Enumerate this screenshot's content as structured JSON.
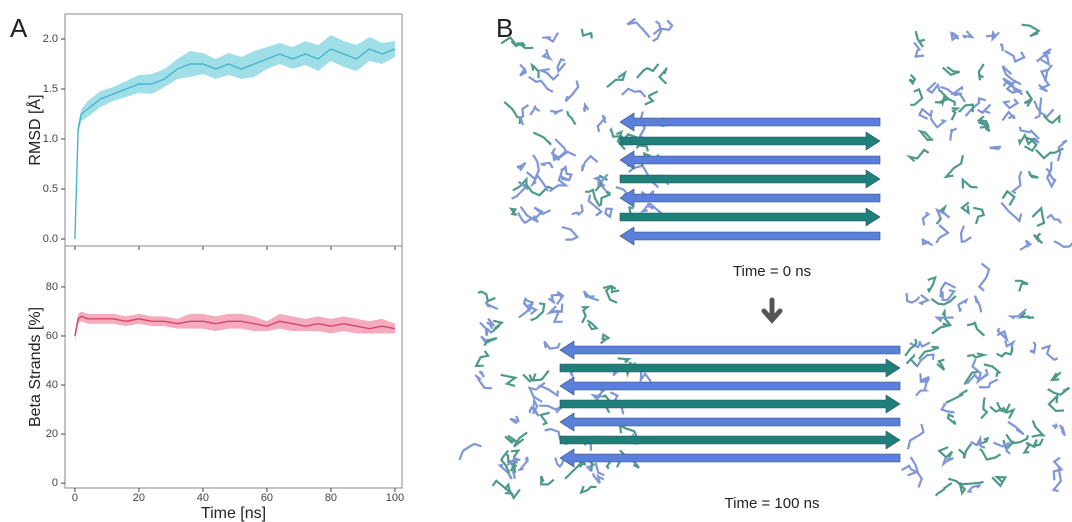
{
  "panel_a": {
    "label": "A"
  },
  "panel_b": {
    "label": "B",
    "captions": [
      "Time = 0 ns",
      "Time = 100 ns"
    ]
  },
  "chart_data": [
    {
      "type": "line",
      "ylabel": "RMSD [Å]",
      "xlim": [
        -3.1,
        102.2
      ],
      "ylim": [
        -0.07,
        2.25
      ],
      "xticks": [
        0,
        20,
        40,
        60,
        80,
        100
      ],
      "yticks": [
        {
          "value": 0,
          "label": "0.0"
        },
        0.5,
        {
          "value": 1,
          "label": "1.0"
        },
        1.5,
        {
          "value": 2,
          "label": "2.0"
        }
      ],
      "x": [
        0,
        1,
        2,
        4,
        8,
        12,
        16,
        20,
        24,
        28,
        32,
        36,
        40,
        44,
        48,
        52,
        56,
        60,
        64,
        68,
        72,
        76,
        80,
        84,
        88,
        92,
        96,
        100
      ],
      "series": [
        {
          "color": "#45b6cc",
          "band_color": "#62c9d9",
          "values": [
            0,
            1.1,
            1.25,
            1.3,
            1.4,
            1.45,
            1.5,
            1.55,
            1.55,
            1.6,
            1.7,
            1.75,
            1.75,
            1.7,
            1.75,
            1.7,
            1.75,
            1.8,
            1.85,
            1.8,
            1.85,
            1.8,
            1.9,
            1.85,
            1.8,
            1.9,
            1.85,
            1.9
          ],
          "lower": [
            0,
            1.05,
            1.18,
            1.22,
            1.32,
            1.38,
            1.42,
            1.46,
            1.45,
            1.52,
            1.6,
            1.62,
            1.65,
            1.6,
            1.64,
            1.6,
            1.62,
            1.7,
            1.75,
            1.7,
            1.74,
            1.68,
            1.78,
            1.72,
            1.68,
            1.78,
            1.75,
            1.82
          ],
          "upper": [
            0,
            1.15,
            1.3,
            1.38,
            1.48,
            1.52,
            1.58,
            1.64,
            1.65,
            1.7,
            1.8,
            1.88,
            1.86,
            1.8,
            1.86,
            1.82,
            1.88,
            1.92,
            1.96,
            1.92,
            1.98,
            1.94,
            2.04,
            1.98,
            1.94,
            2.02,
            1.96,
            1.98
          ]
        }
      ]
    },
    {
      "type": "line",
      "xlabel": "Time [ns]",
      "ylabel": "Beta Strands [%]",
      "xlim": [
        -3.1,
        102.2
      ],
      "ylim": [
        -2,
        96.7
      ],
      "xticks": [
        0,
        20,
        40,
        60,
        80,
        100
      ],
      "yticks": [
        0,
        20,
        40,
        60,
        80
      ],
      "x": [
        0,
        1,
        2,
        4,
        8,
        12,
        16,
        20,
        24,
        28,
        32,
        36,
        40,
        44,
        48,
        52,
        56,
        60,
        64,
        68,
        72,
        76,
        80,
        84,
        88,
        92,
        96,
        100
      ],
      "series": [
        {
          "color": "#d8436c",
          "band_color": "#ec7392",
          "values": [
            60,
            67,
            68,
            67,
            67,
            67,
            66,
            67,
            66,
            66,
            65,
            66,
            66,
            65,
            66,
            66,
            65,
            64,
            66,
            65,
            64,
            65,
            64,
            65,
            64,
            63,
            64,
            63
          ],
          "lower": [
            58,
            65,
            66,
            65,
            65,
            65,
            64,
            65,
            64,
            64,
            63,
            63,
            63,
            62,
            63,
            63,
            62,
            62,
            63,
            62,
            62,
            62,
            61,
            62,
            61,
            61,
            61,
            61
          ],
          "upper": [
            62,
            69,
            70,
            69,
            69,
            69,
            68,
            69,
            68,
            68,
            67,
            69,
            69,
            68,
            69,
            69,
            68,
            66,
            69,
            68,
            67,
            68,
            67,
            68,
            67,
            66,
            67,
            65
          ]
        }
      ]
    }
  ]
}
